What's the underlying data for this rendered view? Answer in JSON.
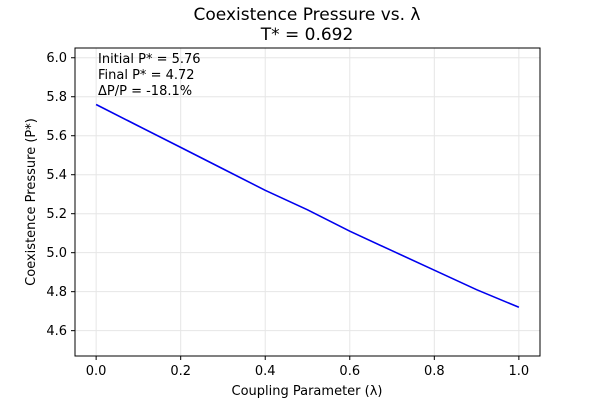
{
  "chart_data": {
    "type": "line",
    "title": "Coexistence Pressure vs. λ",
    "subtitle": "T* = 0.692",
    "xlabel": "Coupling Parameter (λ)",
    "ylabel": "Coexistence Pressure (P*)",
    "xlim": [
      -0.05,
      1.05
    ],
    "ylim": [
      4.47,
      6.05
    ],
    "grid": true,
    "x_ticks": [
      0.0,
      0.2,
      0.4,
      0.6,
      0.8,
      1.0
    ],
    "x_tick_labels": [
      "0.0",
      "0.2",
      "0.4",
      "0.6",
      "0.8",
      "1.0"
    ],
    "y_ticks": [
      4.6,
      4.8,
      5.0,
      5.2,
      5.4,
      5.6,
      5.8,
      6.0
    ],
    "y_tick_labels": [
      "4.6",
      "4.8",
      "5.0",
      "5.2",
      "5.4",
      "5.6",
      "5.8",
      "6.0"
    ],
    "series": [
      {
        "color": "#0000ee",
        "x": [
          0.0,
          0.1,
          0.2,
          0.3,
          0.4,
          0.5,
          0.6,
          0.7,
          0.8,
          0.9,
          1.0
        ],
        "y": [
          5.76,
          5.65,
          5.54,
          5.43,
          5.32,
          5.22,
          5.11,
          5.01,
          4.91,
          4.81,
          4.72
        ]
      }
    ],
    "annotations": [
      "Initial P* = 5.76",
      "Final P* = 4.72",
      "ΔP/P = -18.1%"
    ]
  }
}
